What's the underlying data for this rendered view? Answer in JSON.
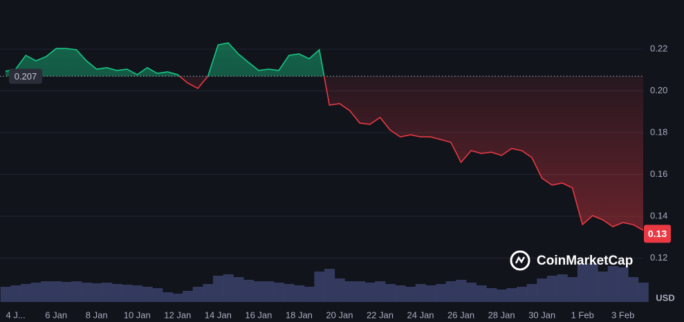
{
  "chart_data": {
    "type": "line",
    "currency": "USD",
    "watermark": "CoinMarketCap",
    "baseline": 0.207,
    "current": {
      "value": 0.1316,
      "label": "0.13"
    },
    "color_up": "#16c784",
    "color_down": "#ea3943",
    "grid": true,
    "ylim": [
      0.099,
      0.2435
    ],
    "yticks": [
      0.12,
      0.14,
      0.16,
      0.18,
      {
        "value": 0.2,
        "label": "0.20"
      },
      0.22
    ],
    "categories": [
      null,
      "4 J...",
      null,
      null,
      null,
      "6 Jan",
      null,
      null,
      null,
      "8 Jan",
      null,
      null,
      null,
      "10 Jan",
      null,
      null,
      null,
      "12 Jan",
      null,
      null,
      null,
      "14 Jan",
      null,
      null,
      null,
      "16 Jan",
      null,
      null,
      null,
      "18 Jan",
      null,
      null,
      null,
      "20 Jan",
      null,
      null,
      null,
      "22 Jan",
      null,
      null,
      null,
      "24 Jan",
      null,
      null,
      null,
      "26 Jan",
      null,
      null,
      null,
      "28 Jan",
      null,
      null,
      null,
      "30 Jan",
      null,
      null,
      null,
      "1 Feb",
      null,
      null,
      null,
      "3 Feb",
      null,
      null
    ],
    "values": [
      0.2094,
      0.2104,
      0.217,
      0.2144,
      0.2164,
      0.2203,
      0.2203,
      0.2197,
      0.2144,
      0.2104,
      0.2111,
      0.2098,
      0.2104,
      0.2078,
      0.2111,
      0.2084,
      0.2091,
      0.2078,
      0.2038,
      0.2012,
      0.2071,
      0.222,
      0.223,
      0.2177,
      0.2137,
      0.2098,
      0.2104,
      0.2098,
      0.217,
      0.2177,
      0.2154,
      0.2197,
      0.1932,
      0.1939,
      0.1906,
      0.1846,
      0.184,
      0.1873,
      0.1813,
      0.178,
      0.179,
      0.178,
      0.178,
      0.1767,
      0.1754,
      0.1658,
      0.1714,
      0.1701,
      0.1707,
      0.1691,
      0.1724,
      0.1714,
      0.1681,
      0.1582,
      0.1549,
      0.1559,
      0.1536,
      0.136,
      0.1403,
      0.1383,
      0.135,
      0.137,
      0.136,
      0.1333
    ],
    "volume": [
      22,
      24,
      26,
      28,
      30,
      30,
      29,
      30,
      28,
      27,
      28,
      26,
      25,
      24,
      22,
      20,
      14,
      12,
      16,
      22,
      26,
      38,
      40,
      36,
      32,
      30,
      30,
      28,
      26,
      24,
      22,
      44,
      48,
      34,
      30,
      30,
      28,
      30,
      26,
      24,
      22,
      26,
      24,
      26,
      30,
      32,
      28,
      24,
      20,
      18,
      20,
      22,
      26,
      34,
      38,
      40,
      36,
      54,
      56,
      44,
      52,
      50,
      36,
      28
    ]
  }
}
